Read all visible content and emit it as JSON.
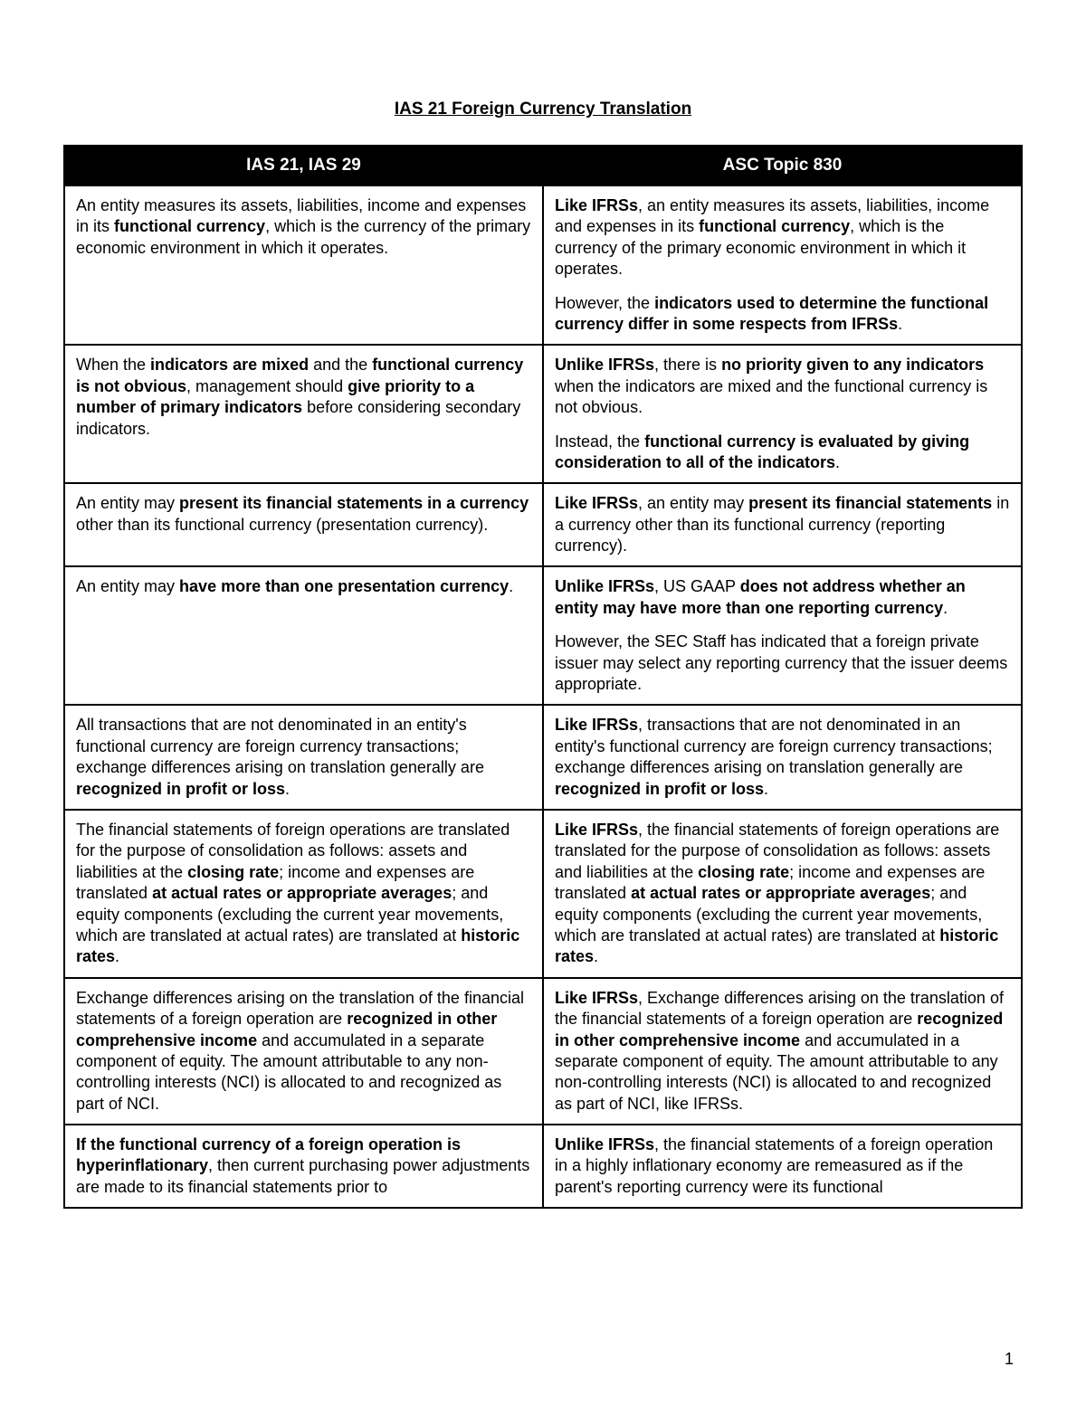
{
  "title": "IAS 21 Foreign Currency Translation",
  "page_number": "1",
  "table": {
    "headers": [
      "IAS 21, IAS 29",
      "ASC Topic 830"
    ],
    "rows": [
      {
        "left": [
          "An entity measures its assets, liabilities, income and expenses in its <b>functional currency</b>, which is the currency of the primary economic environment in which it operates."
        ],
        "right": [
          "<b>Like IFRSs</b>, an entity measures its assets, liabilities, income and expenses in its <b>functional currency</b>, which is the currency of the primary economic environment in which it operates.",
          "However, the <b>indicators used to determine the functional currency differ in some respects from IFRSs</b>."
        ]
      },
      {
        "left": [
          "When the <b>indicators are mixed</b> and the <b>functional currency is not obvious</b>, management should <b>give priority to a number of primary indicators</b> before considering secondary indicators."
        ],
        "right": [
          "<b>Unlike IFRSs</b>, there is <b>no priority given to any indicators</b> when the indicators are mixed and the functional currency is not obvious.",
          "Instead, the <b>functional currency is evaluated by giving consideration to all of the indicators</b>."
        ]
      },
      {
        "left": [
          "An entity may <b>present its financial statements in a currency</b> other than its functional currency (presentation currency)."
        ],
        "right": [
          "<b>Like IFRSs</b>, an entity may <b>present its financial statements</b> in a currency other than its functional currency (reporting currency)."
        ]
      },
      {
        "left": [
          "An entity may <b>have more than one presentation currency</b>."
        ],
        "right": [
          "<b>Unlike IFRSs</b>, US GAAP <b>does not address whether an entity may have more than one reporting currency</b>.",
          "However, the SEC Staff has indicated that a foreign private issuer may select any reporting currency that the issuer deems appropriate."
        ]
      },
      {
        "left": [
          "All transactions that are not denominated in an entity's functional currency are foreign currency transactions; exchange differences arising on translation generally are <b>recognized in profit or loss</b>."
        ],
        "right": [
          "<b>Like IFRSs</b>, transactions that are not denominated in an entity's functional currency are foreign currency transactions; exchange differences arising on translation generally are <b>recognized in profit or loss</b>."
        ]
      },
      {
        "left": [
          "The financial statements of foreign operations are translated for the purpose of consolidation as follows: assets and liabilities at the <b>closing rate</b>; income and expenses are translated <b>at actual rates or appropriate averages</b>; and equity components (excluding the current year movements, which are translated at actual rates) are translated at <b>historic rates</b>."
        ],
        "right": [
          "<b>Like IFRSs</b>, the financial statements of foreign operations are translated for the purpose of consolidation as follows: assets and liabilities at the <b>closing rate</b>; income and expenses are translated <b>at actual rates or appropriate averages</b>; and equity components (excluding the current year movements, which are translated at actual rates) are translated at <b>historic rates</b>."
        ]
      },
      {
        "left": [
          "Exchange differences arising on the translation of the financial statements of a foreign operation are <b>recognized in other comprehensive income</b> and accumulated in a separate component of equity. The amount attributable to any non-controlling interests (NCI) is allocated to and recognized as part of NCI."
        ],
        "right": [
          "<b>Like IFRSs</b>, Exchange differences arising on the translation of the financial statements of a foreign operation are <b>recognized in other comprehensive income</b> and accumulated in a separate component of equity. The amount attributable to any non-controlling interests (NCI) is allocated to and recognized as part of NCI, like IFRSs."
        ]
      },
      {
        "left": [
          "<b>If the functional currency of a foreign operation is hyperinflationary</b>, then current purchasing power adjustments are made to its financial statements prior to"
        ],
        "right": [
          "<b>Unlike IFRSs</b>, the financial statements of a foreign operation in a highly inflationary economy are remeasured as if the parent's reporting currency were its functional"
        ]
      }
    ]
  }
}
